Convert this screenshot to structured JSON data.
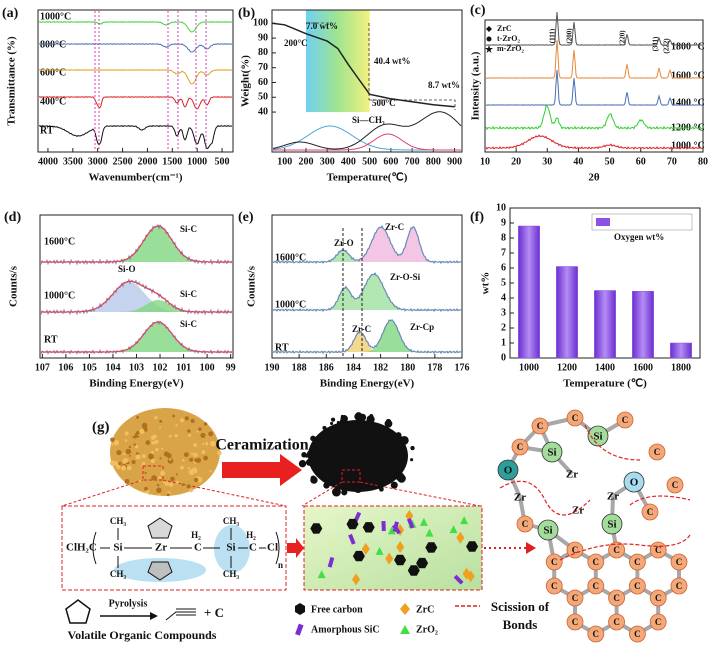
{
  "chart_data": [
    {
      "type": "line",
      "panel": "(a)",
      "xlabel": "Wavenumber(cm⁻¹)",
      "ylabel": "Transmittance (%)",
      "xlim": [
        4200,
        280
      ],
      "xticks": [
        4000,
        3500,
        3000,
        2500,
        2000,
        1500,
        1000,
        500
      ],
      "curve_labels": [
        "1000°C",
        "800°C",
        "600°C",
        "400°C",
        "RT"
      ],
      "colors": [
        "#3cd43c",
        "#4a6fb5",
        "#e0a020",
        "#e02020",
        "#111111"
      ]
    },
    {
      "type": "line",
      "panel": "(b)",
      "xlabel": "Temperature(℃)",
      "ylabel": "Weight(%)",
      "xlim": [
        40,
        935
      ],
      "ylim": [
        13,
        109
      ],
      "xticks": [
        100,
        200,
        300,
        400,
        500,
        600,
        700,
        800,
        900
      ],
      "yticks": [
        40,
        50,
        60,
        70,
        80,
        90,
        100
      ],
      "x": [
        40,
        100,
        200,
        300,
        350,
        400,
        450,
        500,
        600,
        700,
        800,
        900
      ],
      "values": [
        100,
        99,
        93,
        88,
        83,
        72,
        62,
        52,
        49,
        47,
        45,
        43.6
      ],
      "color": "#222222",
      "annotations": [
        "7.0 wt%",
        "200°C",
        "40.4 wt%",
        "500°C",
        "8.7 wt%",
        "Si—CH₃"
      ]
    },
    {
      "type": "line",
      "panel": "(c)",
      "xlabel": "2θ",
      "ylabel": "Intensity (a.u.)",
      "xlim": [
        10,
        80
      ],
      "xticks": [
        10,
        20,
        30,
        40,
        50,
        60,
        70,
        80
      ],
      "legend": [
        "ZrC",
        "t-ZrO₂",
        "m-ZrO₂"
      ],
      "curve_labels": [
        "1800 °C",
        "1600 °C",
        "1400 °C",
        "1200 °C",
        "1000 °C"
      ],
      "colors": [
        "#555555",
        "#e8883a",
        "#4a6fb5",
        "#30d030",
        "#e02020"
      ],
      "peak_labels": [
        "(111)",
        "(200)",
        "(220)",
        "(311)",
        "(222)"
      ]
    },
    {
      "type": "line",
      "panel": "(d)",
      "xlabel": "Binding Energy(eV)",
      "ylabel": "Counts/s",
      "xlim": [
        107.1,
        98.9
      ],
      "xticks": [
        107,
        106,
        105,
        104,
        103,
        102,
        101,
        100,
        99
      ],
      "curve_labels": [
        "1600°C",
        "1000°C",
        "RT"
      ],
      "peak_labels": [
        "Si-C",
        "Si-O",
        "Si-C",
        "Si-C"
      ]
    },
    {
      "type": "line",
      "panel": "(e)",
      "xlabel": "Binding Energy(eV)",
      "ylabel": "Counts/s",
      "xlim": [
        190,
        176
      ],
      "xticks": [
        190,
        188,
        186,
        184,
        182,
        180,
        178,
        176
      ],
      "curve_labels": [
        "1600°C",
        "1000°C",
        "RT"
      ],
      "peak_labels": [
        "Zr-O",
        "Zr-C",
        "Zr-O-Si",
        "Zr-C",
        "Zr-Cp"
      ]
    },
    {
      "type": "bar",
      "panel": "(f)",
      "xlabel": "Temperature (℃)",
      "ylabel": "wt%",
      "categories": [
        "1000",
        "1200",
        "1400",
        "1600",
        "1800"
      ],
      "series": [
        {
          "name": "Oxygen wt%",
          "color": "#8c52e6",
          "values": [
            8.8,
            6.1,
            4.5,
            4.45,
            1.0
          ]
        }
      ],
      "ylim": [
        0,
        10
      ],
      "yticks": [
        0,
        1,
        2,
        3,
        4,
        5,
        6,
        7,
        8,
        9,
        10
      ]
    }
  ],
  "diagram": {
    "label": "(g)",
    "process": "Ceramization",
    "monomer": {
      "end_left": "ClH₂C",
      "si_1": "Si",
      "zr": "Zr",
      "si_2": "Si",
      "carbons": [
        "C",
        "C"
      ],
      "h2": [
        "H₂",
        "H₂"
      ],
      "ch3": [
        "CH₃",
        "CH₃",
        "CH₃",
        "CH₃"
      ],
      "end_right": "Cl",
      "repeat": "n"
    },
    "pyrolysis": "Pyrolysis",
    "product": "+ C",
    "byproduct": "Volatile Organic Compounds",
    "legend": [
      "Free carbon",
      "ZrC",
      "Amorphous SiC",
      "ZrO₂"
    ],
    "scission": [
      "Scission of",
      "Bonds"
    ],
    "network": [
      "O",
      "Si",
      "Si",
      "O",
      "Zr",
      "Zr",
      "Zr",
      "Si",
      "Si",
      "Zr",
      "C",
      "C",
      "C",
      "C",
      "C",
      "C",
      "C",
      "C",
      "C",
      "C",
      "C",
      "C",
      "C",
      "C",
      "C",
      "C",
      "C",
      "C",
      "C",
      "C",
      "C",
      "C",
      "C",
      "C",
      "C",
      "C",
      "C"
    ]
  }
}
